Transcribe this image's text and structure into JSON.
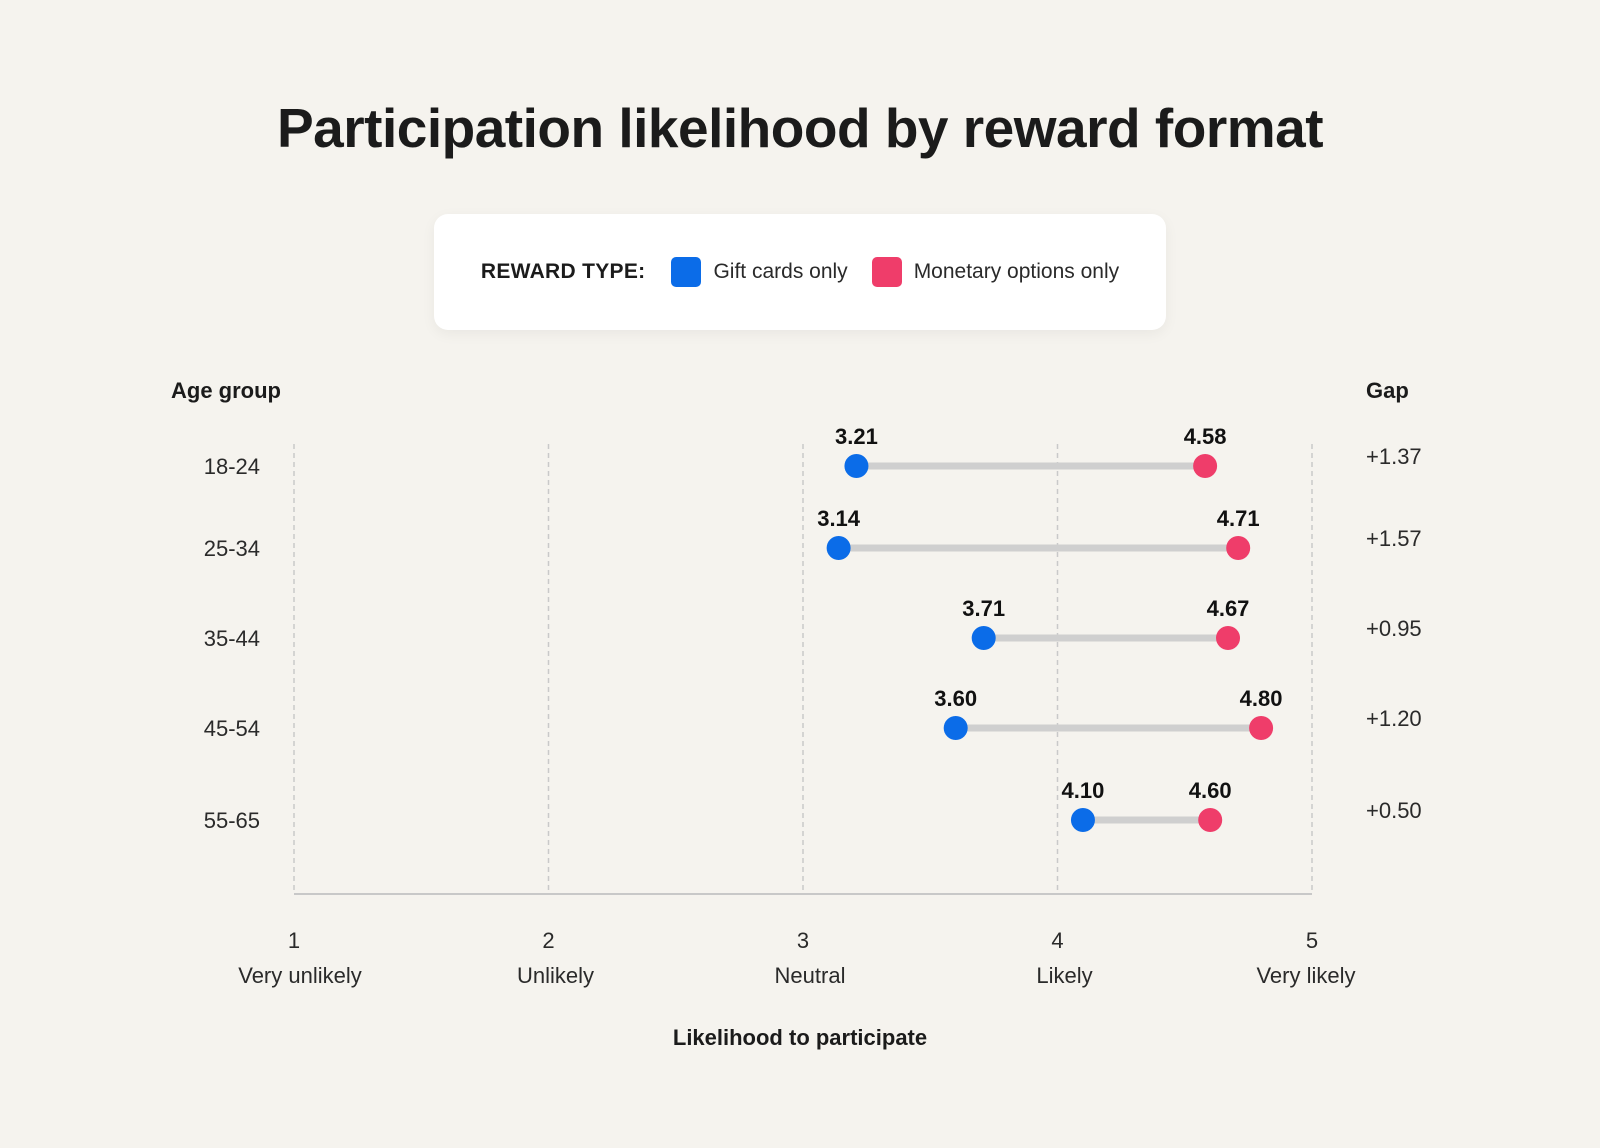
{
  "chart_data": {
    "type": "dumbbell",
    "title": "Participation likelihood by reward format",
    "legend": {
      "title": "REWARD TYPE:",
      "placement": "top-center",
      "items": [
        {
          "name": "Gift cards only",
          "color": "#0b6ce8"
        },
        {
          "name": "Monetary options only",
          "color": "#ef3d6a"
        }
      ]
    },
    "y_header": "Age group",
    "gap_header": "Gap",
    "xlabel": "Likelihood to participate",
    "xlim": [
      1,
      5
    ],
    "x_ticks": [
      {
        "value": 1,
        "label": "1",
        "sublabel": "Very unlikely"
      },
      {
        "value": 2,
        "label": "2",
        "sublabel": "Unlikely"
      },
      {
        "value": 3,
        "label": "3",
        "sublabel": "Neutral"
      },
      {
        "value": 4,
        "label": "4",
        "sublabel": "Likely"
      },
      {
        "value": 5,
        "label": "5",
        "sublabel": "Very likely"
      }
    ],
    "grid": true,
    "categories": [
      "18-24",
      "25-34",
      "35-44",
      "45-54",
      "55-65"
    ],
    "series": [
      {
        "name": "Gift cards only",
        "color": "#0b6ce8",
        "values": [
          3.21,
          3.14,
          3.71,
          3.6,
          4.1
        ],
        "labels": [
          "3.21",
          "3.14",
          "3.71",
          "3.60",
          "4.10"
        ]
      },
      {
        "name": "Monetary options only",
        "color": "#ef3d6a",
        "values": [
          4.58,
          4.71,
          4.67,
          4.8,
          4.6
        ],
        "labels": [
          "4.58",
          "4.71",
          "4.67",
          "4.80",
          "4.60"
        ]
      }
    ],
    "gaps": [
      "+1.37",
      "+1.57",
      "+0.95",
      "+1.20",
      "+0.50"
    ]
  }
}
